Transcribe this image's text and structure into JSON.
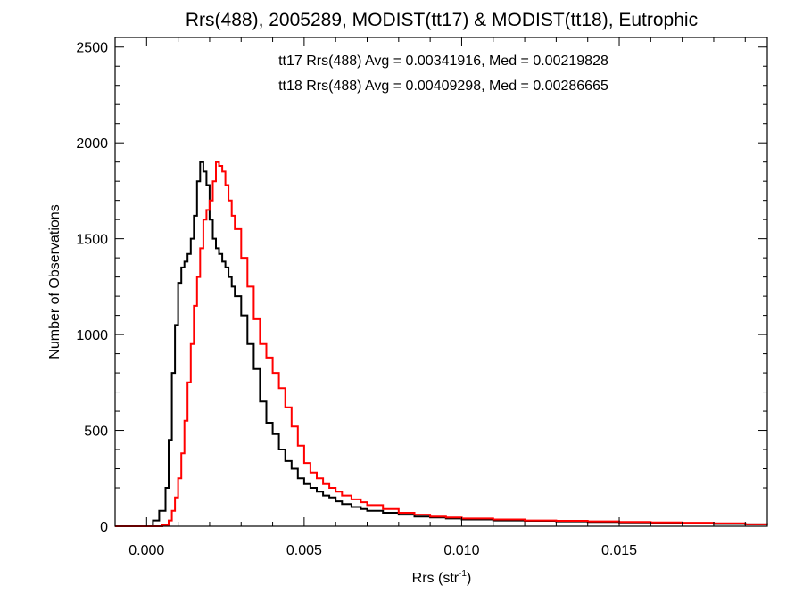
{
  "chart_data": {
    "type": "line",
    "title": "Rrs(488), 2005289, MODIST(tt17) & MODIST(tt18), Eutrophic",
    "xlabel": "Rrs (str",
    "xlabel_superscript": "-1",
    "xlabel_suffix": ")",
    "ylabel": "Number of Observations",
    "xlim": [
      -0.001,
      0.0197
    ],
    "ylim": [
      0,
      2550
    ],
    "x_ticks": [
      0.0,
      0.005,
      0.01,
      0.015
    ],
    "x_tick_labels": [
      "0.000",
      "0.005",
      "0.010",
      "0.015"
    ],
    "y_ticks": [
      0,
      500,
      1000,
      1500,
      2000,
      2500
    ],
    "y_tick_labels": [
      "0",
      "500",
      "1000",
      "1500",
      "2000",
      "2500"
    ],
    "grid": false,
    "step": true,
    "annotations": [
      {
        "text": "tt17 Rrs(488) Avg = 0.00341916, Med = 0.00219828",
        "color": "#000000"
      },
      {
        "text": "tt18 Rrs(488) Avg = 0.00409298, Med = 0.00286665",
        "color": "#ff0000"
      }
    ],
    "series": [
      {
        "color": "#000000",
        "x": [
          -0.001,
          0.0,
          0.0002,
          0.0004,
          0.0006,
          0.0007,
          0.0008,
          0.0009,
          0.001,
          0.0011,
          0.0012,
          0.0013,
          0.0014,
          0.0015,
          0.0016,
          0.0017,
          0.0018,
          0.0019,
          0.002,
          0.0021,
          0.0022,
          0.0023,
          0.0024,
          0.0025,
          0.0026,
          0.0027,
          0.0028,
          0.003,
          0.0032,
          0.0034,
          0.0036,
          0.0038,
          0.004,
          0.0042,
          0.0044,
          0.0046,
          0.0048,
          0.005,
          0.0052,
          0.0054,
          0.0056,
          0.0058,
          0.006,
          0.0062,
          0.0065,
          0.0068,
          0.007,
          0.0075,
          0.008,
          0.0085,
          0.009,
          0.0095,
          0.01,
          0.011,
          0.012,
          0.013,
          0.014,
          0.015,
          0.016,
          0.017,
          0.018,
          0.019,
          0.0197
        ],
        "y": [
          0,
          0,
          30,
          80,
          200,
          450,
          800,
          1050,
          1270,
          1350,
          1380,
          1420,
          1500,
          1620,
          1800,
          1900,
          1850,
          1780,
          1600,
          1500,
          1450,
          1420,
          1380,
          1350,
          1300,
          1250,
          1200,
          1100,
          950,
          820,
          650,
          540,
          480,
          400,
          340,
          300,
          250,
          220,
          200,
          180,
          160,
          150,
          130,
          115,
          100,
          90,
          80,
          70,
          60,
          50,
          45,
          40,
          35,
          30,
          28,
          25,
          22,
          20,
          18,
          15,
          12,
          10,
          8
        ]
      },
      {
        "color": "#ff0000",
        "x": [
          -0.001,
          0.0,
          0.0005,
          0.0007,
          0.0008,
          0.0009,
          0.001,
          0.0011,
          0.0012,
          0.0013,
          0.0014,
          0.0015,
          0.0016,
          0.0017,
          0.0018,
          0.0019,
          0.002,
          0.0021,
          0.0022,
          0.0023,
          0.0024,
          0.0025,
          0.0026,
          0.0027,
          0.0028,
          0.003,
          0.0032,
          0.0034,
          0.0036,
          0.0038,
          0.004,
          0.0042,
          0.0044,
          0.0046,
          0.0048,
          0.005,
          0.0052,
          0.0054,
          0.0056,
          0.0058,
          0.006,
          0.0062,
          0.0065,
          0.0068,
          0.007,
          0.0075,
          0.008,
          0.0085,
          0.009,
          0.0095,
          0.01,
          0.011,
          0.012,
          0.013,
          0.014,
          0.015,
          0.016,
          0.017,
          0.018,
          0.019,
          0.0197
        ],
        "y": [
          0,
          0,
          5,
          30,
          80,
          150,
          250,
          380,
          550,
          750,
          950,
          1150,
          1300,
          1450,
          1600,
          1650,
          1700,
          1800,
          1900,
          1880,
          1850,
          1780,
          1700,
          1620,
          1550,
          1400,
          1250,
          1080,
          950,
          880,
          800,
          720,
          620,
          520,
          420,
          330,
          280,
          250,
          220,
          200,
          180,
          160,
          140,
          125,
          110,
          90,
          70,
          60,
          50,
          45,
          40,
          35,
          30,
          28,
          25,
          22,
          20,
          18,
          15,
          10,
          8
        ]
      }
    ]
  }
}
